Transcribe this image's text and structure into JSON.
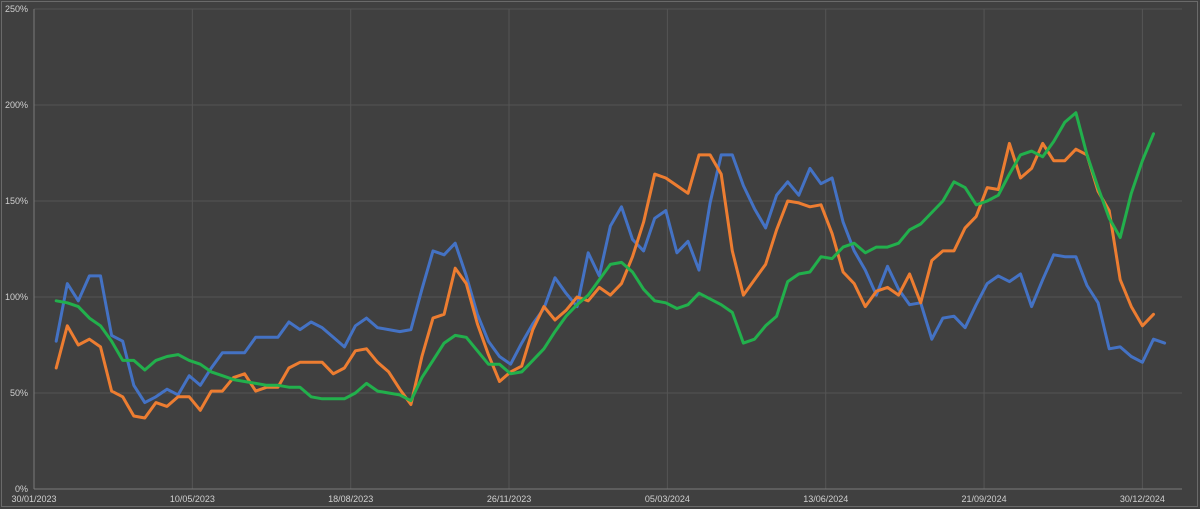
{
  "chart_data": {
    "type": "line",
    "title": "",
    "xlabel": "",
    "ylabel": "",
    "x_tick_labels": [
      "30/01/2023",
      "10/05/2023",
      "18/08/2023",
      "26/11/2023",
      "05/03/2024",
      "13/06/2024",
      "21/09/2024",
      "30/12/2024"
    ],
    "y_tick_labels": [
      "0%",
      "50%",
      "100%",
      "150%",
      "200%",
      "250%"
    ],
    "ylim": [
      0,
      250
    ],
    "xlim": [
      "2023-01-30",
      "2025-01-24"
    ],
    "grid": true,
    "legend": "none",
    "series": [
      {
        "color": "#4472C4",
        "start_date": "2023-02-13",
        "step_days": 7,
        "values": [
          77,
          107,
          98,
          111,
          111,
          80,
          77,
          54,
          45,
          48,
          52,
          49,
          59,
          54,
          63,
          71,
          71,
          71,
          79,
          79,
          79,
          87,
          83,
          87,
          84,
          79,
          74,
          85,
          89,
          84,
          83,
          82,
          83,
          104,
          124,
          122,
          128,
          111,
          91,
          77,
          69,
          65,
          76,
          86,
          94,
          110,
          102,
          95,
          123,
          111,
          137,
          147,
          130,
          124,
          141,
          145,
          123,
          129,
          114,
          149,
          174,
          174,
          158,
          146,
          136,
          153,
          160,
          153,
          167,
          159,
          162,
          139,
          124,
          114,
          101,
          116,
          104,
          96,
          97,
          78,
          89,
          90,
          84,
          96,
          107,
          111,
          108,
          112,
          95,
          109,
          122,
          121,
          121,
          106,
          97,
          73,
          74,
          69,
          66,
          78,
          76
        ]
      },
      {
        "color": "#ED7D31",
        "start_date": "2023-02-13",
        "step_days": 7,
        "values": [
          63,
          85,
          75,
          78,
          74,
          51,
          48,
          38,
          37,
          45,
          43,
          48,
          48,
          41,
          51,
          51,
          58,
          60,
          51,
          53,
          53,
          63,
          66,
          66,
          66,
          60,
          63,
          72,
          73,
          66,
          61,
          52,
          44,
          69,
          89,
          91,
          115,
          107,
          86,
          70,
          56,
          61,
          64,
          83,
          95,
          88,
          93,
          100,
          98,
          105,
          101,
          107,
          121,
          139,
          164,
          162,
          158,
          154,
          174,
          174,
          164,
          124,
          101,
          109,
          117,
          135,
          150,
          149,
          147,
          148,
          133,
          113,
          107,
          95,
          103,
          105,
          101,
          112,
          97,
          119,
          124,
          124,
          136,
          142,
          157,
          156,
          180,
          162,
          167,
          180,
          171,
          171,
          177,
          174,
          155,
          145,
          109,
          95,
          85,
          91
        ]
      },
      {
        "color": "#22B04C",
        "start_date": "2023-02-13",
        "step_days": 7,
        "values": [
          98,
          97,
          95,
          89,
          85,
          77,
          67,
          67,
          62,
          67,
          69,
          70,
          67,
          65,
          61,
          59,
          57,
          56,
          55,
          54,
          54,
          53,
          53,
          48,
          47,
          47,
          47,
          50,
          55,
          51,
          50,
          49,
          46,
          58,
          67,
          76,
          80,
          79,
          72,
          65,
          65,
          60,
          61,
          67,
          73,
          82,
          90,
          96,
          101,
          109,
          117,
          118,
          113,
          104,
          98,
          97,
          94,
          96,
          102,
          99,
          96,
          92,
          76,
          78,
          85,
          90,
          108,
          112,
          113,
          121,
          120,
          126,
          128,
          123,
          126,
          126,
          128,
          135,
          138,
          144,
          150,
          160,
          157,
          148,
          150,
          153,
          164,
          174,
          176,
          173,
          181,
          191,
          196,
          174,
          157,
          141,
          131,
          154,
          171,
          185
        ]
      }
    ]
  }
}
